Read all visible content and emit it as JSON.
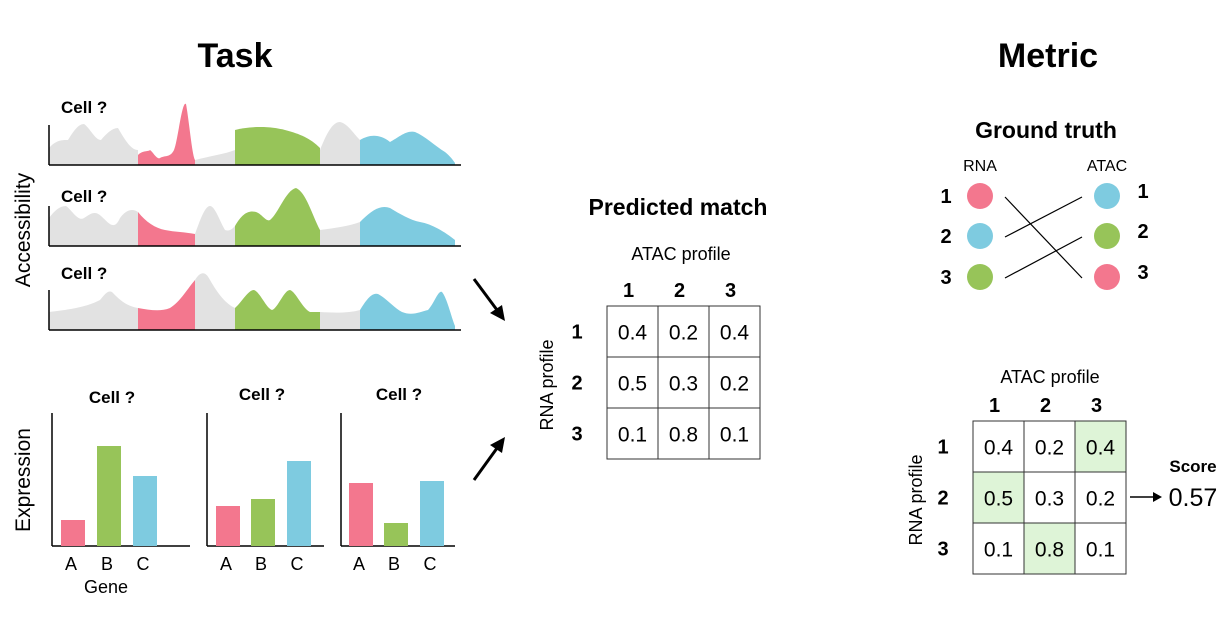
{
  "colors": {
    "pink": "#f3778e",
    "green": "#97c459",
    "blue": "#7ecbe0",
    "gray": "#e2e2e2",
    "highlight": "#def4d7"
  },
  "task": {
    "title": "Task",
    "accessibility_label": "Accessibility",
    "tracks": [
      {
        "label": "Cell ?"
      },
      {
        "label": "Cell ?"
      },
      {
        "label": "Cell ?"
      }
    ],
    "expression_label": "Expression",
    "gene_label": "Gene",
    "bar_charts": [
      {
        "label": "Cell ?",
        "categories": [
          "A",
          "B",
          "C"
        ],
        "values": [
          0.26,
          1.0,
          0.7
        ]
      },
      {
        "label": "Cell ?",
        "categories": [
          "A",
          "B",
          "C"
        ],
        "values": [
          0.4,
          0.47,
          0.85
        ]
      },
      {
        "label": "Cell ?",
        "categories": [
          "A",
          "B",
          "C"
        ],
        "values": [
          0.63,
          0.23,
          0.65
        ]
      }
    ]
  },
  "predicted": {
    "title": "Predicted match",
    "col_header": "ATAC profile",
    "row_header": "RNA profile",
    "cols": [
      "1",
      "2",
      "3"
    ],
    "rows": [
      "1",
      "2",
      "3"
    ],
    "values": [
      [
        "0.4",
        "0.2",
        "0.4"
      ],
      [
        "0.5",
        "0.3",
        "0.2"
      ],
      [
        "0.1",
        "0.8",
        "0.1"
      ]
    ]
  },
  "metric": {
    "title": "Metric",
    "ground_truth_title": "Ground truth",
    "rna_label": "RNA",
    "atac_label": "ATAC",
    "rna_nodes": [
      {
        "num": "1",
        "color": "pink"
      },
      {
        "num": "2",
        "color": "blue"
      },
      {
        "num": "3",
        "color": "green"
      }
    ],
    "atac_nodes": [
      {
        "num": "1",
        "color": "blue"
      },
      {
        "num": "2",
        "color": "green"
      },
      {
        "num": "3",
        "color": "pink"
      }
    ],
    "col_header": "ATAC profile",
    "row_header": "RNA profile",
    "cols": [
      "1",
      "2",
      "3"
    ],
    "rows": [
      "1",
      "2",
      "3"
    ],
    "values": [
      [
        "0.4",
        "0.2",
        "0.4"
      ],
      [
        "0.5",
        "0.3",
        "0.2"
      ],
      [
        "0.1",
        "0.8",
        "0.1"
      ]
    ],
    "highlighted_cells": [
      [
        0,
        2
      ],
      [
        1,
        0
      ],
      [
        2,
        1
      ]
    ],
    "score_label": "Score",
    "score_value": "0.57"
  }
}
